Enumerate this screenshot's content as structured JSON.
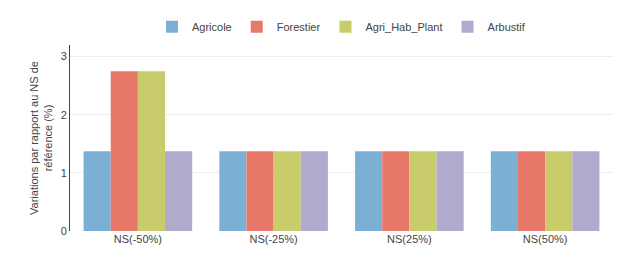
{
  "chart_data": {
    "type": "bar",
    "ylabel": "Variations par rapport au NS de\nréférence (%)",
    "categories": [
      "NS(-50%)",
      "NS(-25%)",
      "NS(25%)",
      "NS(50%)"
    ],
    "series": [
      {
        "name": "Agricole",
        "color": "#7BAFD4",
        "values": [
          1.37,
          1.37,
          1.37,
          1.37
        ]
      },
      {
        "name": "Forestier",
        "color": "#E8796A",
        "values": [
          2.75,
          1.37,
          1.37,
          1.37
        ]
      },
      {
        "name": "Agri_Hab_Plant",
        "color": "#C8CC6A",
        "values": [
          2.75,
          1.37,
          1.37,
          1.37
        ]
      },
      {
        "name": "Arbustif",
        "color": "#B0AACC",
        "values": [
          1.37,
          1.37,
          1.37,
          1.37
        ]
      }
    ],
    "ylim": [
      0,
      3.2
    ],
    "yticks": [
      0,
      1,
      2,
      3
    ],
    "grid": true,
    "legend": "top"
  }
}
